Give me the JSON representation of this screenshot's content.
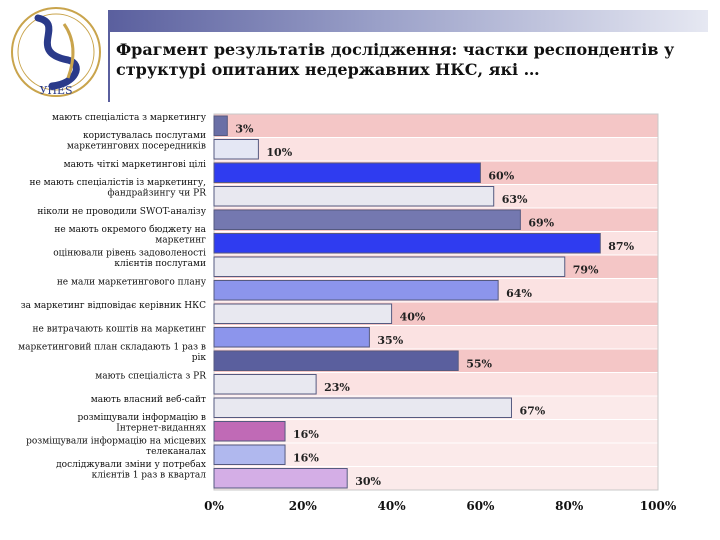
{
  "title_lines": [
    "Фрагмент результатів дослідження: частки респондентів у",
    "структурі опитаних недержавних НКС, які …"
  ],
  "logo": {
    "text": "УНЕS",
    "icon": "university-seal-logo"
  },
  "chart_data": {
    "type": "bar",
    "orientation": "horizontal",
    "categories": [
      "мають спеціаліста з маркетингу",
      "користувалась послугами маркетингових посередників",
      "мають чіткі маркетингові цілі",
      "не мають спеціалістів із маркетингу, фандрайзингу чи PR",
      "ніколи не проводили SWOT-аналізу",
      "не мають окремого бюджету на маркетинг",
      "оцінювали рівень задоволеності клієнтів послугами",
      "не мали маркетингового плану",
      "за маркетинг відповідає керівник НКС",
      "не витрачають коштів на маркетинг",
      "маркетинговий план складають 1 раз в рік",
      "мають спеціаліста з PR",
      "мають власний веб-сайт",
      "розміщували інформацію в Інтернет-виданнях",
      "розміщували інформацію на місцевих телеканалах",
      "досліджували зміни у потребах клієнтів 1 раз в квартал"
    ],
    "values": [
      3,
      10,
      60,
      63,
      69,
      87,
      79,
      64,
      40,
      35,
      55,
      23,
      67,
      16,
      16,
      30
    ],
    "value_labels": [
      "3%",
      "10%",
      "60%",
      "63%",
      "69%",
      "87%",
      "79%",
      "64%",
      "40%",
      "35%",
      "55%",
      "23%",
      "67%",
      "16%",
      "16%",
      "30%"
    ],
    "xlim": [
      0,
      100
    ],
    "x_ticks": [
      "0%",
      "20%",
      "40%",
      "60%",
      "80%",
      "100%"
    ],
    "bar_colors": [
      "#6a6fa6",
      "#e4e7f4",
      "#2f3cf0",
      "#e8e8f0",
      "#7478b0",
      "#2f3cf0",
      "#e8e8f0",
      "#8c95ec",
      "#e8e8f0",
      "#8c95ec",
      "#5a5f9e",
      "#e8e8f0",
      "#e8e8f0",
      "#c06ab6",
      "#b0b8ee",
      "#d4aee6"
    ],
    "band_colors": [
      "#f4c6c6",
      "#fbe2e2",
      "#f4c6c6",
      "#fbe2e2",
      "#f4c6c6",
      "#fbe2e2",
      "#f4c6c6",
      "#fbe2e2",
      "#f4c6c6",
      "#fbe2e2",
      "#f4c6c6",
      "#fbe2e2",
      "#fbeaea",
      "#fbeaea",
      "#fbeaea",
      "#fbeaea"
    ],
    "grid": false,
    "legend": "none"
  }
}
